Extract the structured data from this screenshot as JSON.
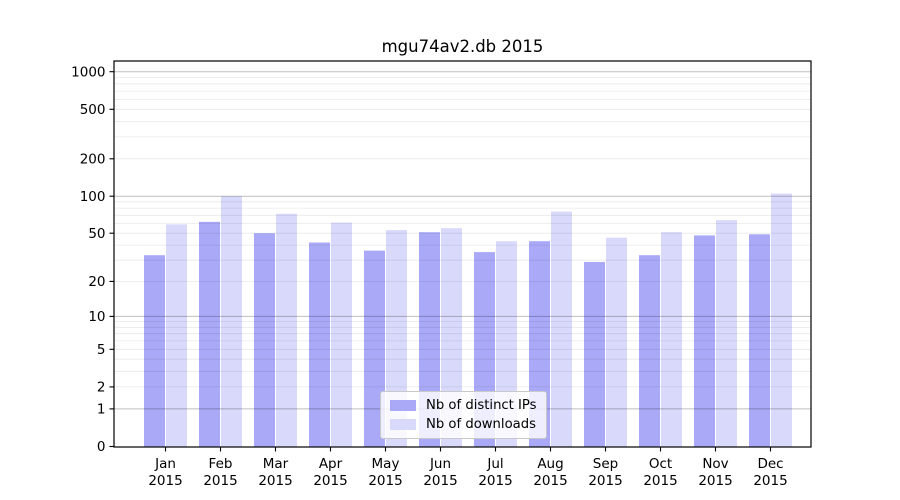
{
  "chart_data": {
    "type": "bar",
    "title": "mgu74av2.db 2015",
    "categories": [
      "Jan 2015",
      "Feb 2015",
      "Mar 2015",
      "Apr 2015",
      "May 2015",
      "Jun 2015",
      "Jul 2015",
      "Aug 2015",
      "Sep 2015",
      "Oct 2015",
      "Nov 2015",
      "Dec 2015"
    ],
    "series": [
      {
        "name": "Nb of distinct IPs",
        "color": "#a9a9f8",
        "values": [
          33,
          62,
          50,
          42,
          36,
          51,
          35,
          43,
          29,
          33,
          48,
          49
        ]
      },
      {
        "name": "Nb of downloads",
        "color": "#d9d9fb",
        "values": [
          59,
          100,
          72,
          61,
          53,
          55,
          43,
          75,
          46,
          51,
          64,
          105
        ]
      }
    ],
    "yscale": "log1p",
    "y_tick_values": [
      1000,
      500,
      200,
      100,
      50,
      20,
      10,
      5,
      2,
      1,
      0
    ],
    "ylim": [
      0,
      1200
    ],
    "grid": "horizontal log major and minor gridlines",
    "legend_position": "lower center",
    "axis_color": "#000000",
    "background_color": "#ffffff"
  }
}
